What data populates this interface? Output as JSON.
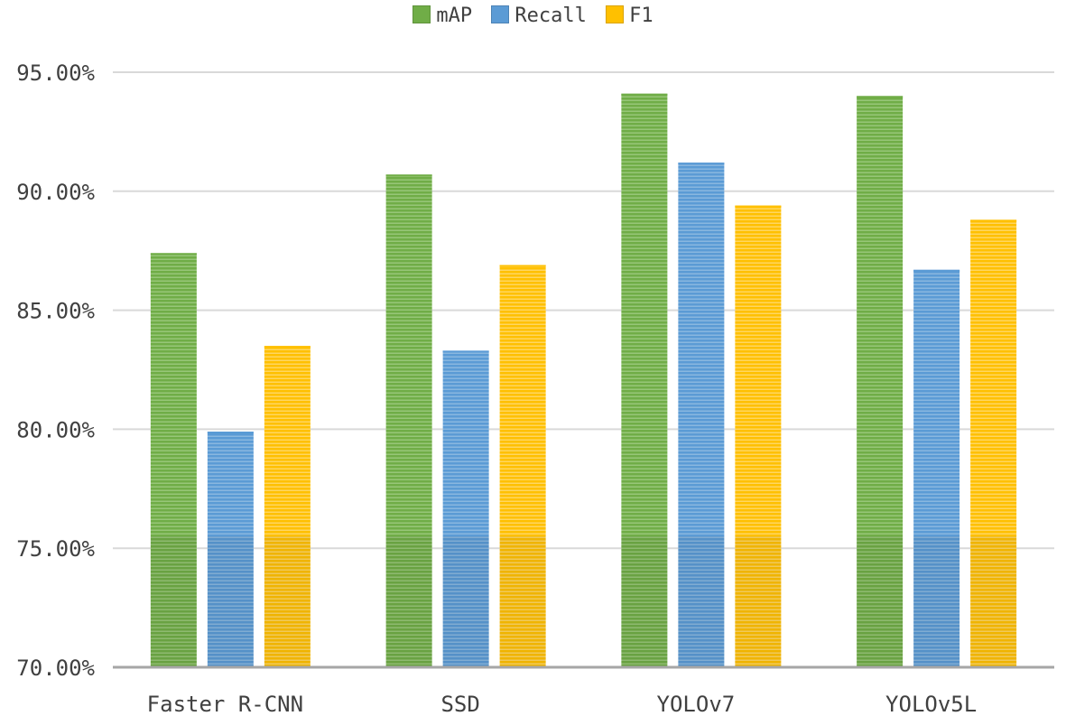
{
  "chart_data": {
    "type": "bar",
    "title": "",
    "xlabel": "",
    "ylabel": "",
    "categories": [
      "Faster R-CNN",
      "SSD",
      "YOLOv7",
      "YOLOv5L"
    ],
    "series": [
      {
        "name": "mAP",
        "color": "#70ad47",
        "values": [
          0.874,
          0.907,
          0.941,
          0.94
        ]
      },
      {
        "name": "Recall",
        "color": "#5b9bd5",
        "values": [
          0.799,
          0.833,
          0.912,
          0.867
        ]
      },
      {
        "name": "F1",
        "color": "#ffc000",
        "values": [
          0.835,
          0.869,
          0.894,
          0.888
        ]
      }
    ],
    "ylim": [
      0.7,
      0.95
    ],
    "yticks": [
      0.7,
      0.75,
      0.8,
      0.85,
      0.9,
      0.95
    ],
    "ytick_labels": [
      "70.00%",
      "75.00%",
      "80.00%",
      "85.00%",
      "90.00%",
      "95.00%"
    ],
    "grid": true,
    "legend_position": "top-center"
  }
}
